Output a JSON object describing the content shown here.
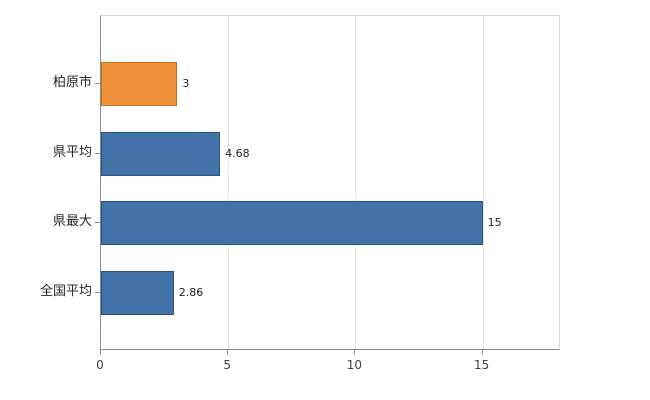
{
  "chart_data": {
    "type": "bar",
    "orientation": "horizontal",
    "title": "",
    "xlabel": "",
    "ylabel": "",
    "categories": [
      "柏原市",
      "県平均",
      "県最大",
      "全国平均"
    ],
    "values": [
      3,
      4.68,
      15,
      2.86
    ],
    "value_labels": [
      "3",
      "4.68",
      "15",
      "2.86"
    ],
    "bar_colors": [
      "#f0923b",
      "#4372a8",
      "#4372a8",
      "#4372a8"
    ],
    "bar_borders": [
      "#c06f1f",
      "#2c517d",
      "#2c517d",
      "#2c517d"
    ],
    "x_ticks": [
      0,
      5,
      10,
      15
    ],
    "xlim": [
      0,
      18
    ],
    "grid": "vertical-dotted",
    "legend": "none",
    "axis_color": "#8c8c8c",
    "gridline_color": "#cfcfcf",
    "background_color": "#ffffff"
  }
}
